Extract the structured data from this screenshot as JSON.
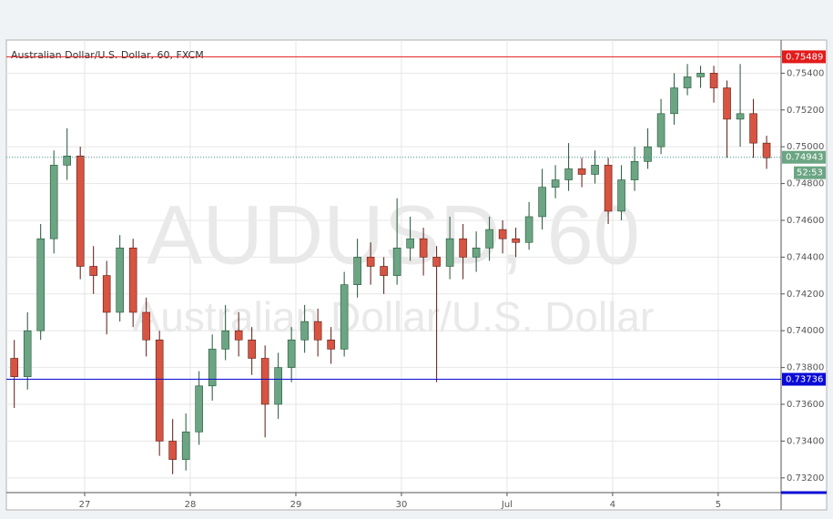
{
  "chart_data": {
    "type": "candlestick",
    "title": "Australian Dollar/U.S. Dollar, 60, FXCM",
    "watermark": [
      "AUDUSD, 60",
      "Australian Dollar/U.S. Dollar"
    ],
    "x": [
      -16,
      -13,
      -10,
      -7,
      -4,
      -1,
      2,
      5,
      8,
      11,
      14,
      17,
      20,
      23,
      26,
      29,
      32,
      35,
      38,
      41,
      44,
      47,
      50,
      53,
      56,
      59,
      62,
      65,
      68,
      71,
      74,
      77,
      80,
      83,
      86,
      89,
      92,
      95,
      98,
      101,
      104,
      107,
      110,
      113,
      116,
      119,
      122,
      125,
      128,
      131,
      134,
      137,
      140,
      143,
      146,
      149,
      152,
      155
    ],
    "open": [
      0.7385,
      0.7375,
      0.74,
      0.745,
      0.749,
      0.7495,
      0.7435,
      0.743,
      0.741,
      0.7445,
      0.741,
      0.7395,
      0.734,
      0.733,
      0.7345,
      0.737,
      0.739,
      0.74,
      0.7395,
      0.7385,
      0.736,
      0.738,
      0.7395,
      0.7405,
      0.7395,
      0.739,
      0.7425,
      0.744,
      0.7435,
      0.743,
      0.7445,
      0.745,
      0.744,
      0.7435,
      0.745,
      0.744,
      0.7445,
      0.7455,
      0.745,
      0.7448,
      0.7462,
      0.7478,
      0.7482,
      0.7488,
      0.7485,
      0.749,
      0.7465,
      0.7482,
      0.7492,
      0.75,
      0.7518,
      0.7532,
      0.7538,
      0.754,
      0.7532,
      0.7515,
      0.7518,
      0.7502
    ],
    "high": [
      0.7395,
      0.741,
      0.7458,
      0.7498,
      0.751,
      0.75,
      0.7446,
      0.7438,
      0.7452,
      0.745,
      0.7418,
      0.74,
      0.7352,
      0.7355,
      0.7378,
      0.7398,
      0.7414,
      0.741,
      0.7402,
      0.7392,
      0.7388,
      0.7402,
      0.7414,
      0.7412,
      0.7402,
      0.7432,
      0.745,
      0.7448,
      0.744,
      0.7472,
      0.7462,
      0.7456,
      0.7446,
      0.7462,
      0.7458,
      0.7454,
      0.7462,
      0.746,
      0.7456,
      0.747,
      0.7488,
      0.749,
      0.7502,
      0.7494,
      0.7498,
      0.7494,
      0.749,
      0.75,
      0.751,
      0.7526,
      0.754,
      0.7545,
      0.7544,
      0.7544,
      0.7536,
      0.7545,
      0.7526,
      0.7506
    ],
    "low": [
      0.7358,
      0.7368,
      0.7395,
      0.7442,
      0.7482,
      0.7428,
      0.742,
      0.7398,
      0.7405,
      0.7402,
      0.7386,
      0.7332,
      0.7322,
      0.7324,
      0.7338,
      0.7362,
      0.7384,
      0.7386,
      0.7376,
      0.7342,
      0.7352,
      0.7372,
      0.7388,
      0.7386,
      0.7382,
      0.7386,
      0.7418,
      0.7425,
      0.742,
      0.7425,
      0.7438,
      0.743,
      0.7372,
      0.7428,
      0.7428,
      0.7432,
      0.7438,
      0.7442,
      0.744,
      0.7444,
      0.7455,
      0.7472,
      0.7476,
      0.7478,
      0.748,
      0.7458,
      0.746,
      0.7476,
      0.7488,
      0.7496,
      0.7512,
      0.7528,
      0.7532,
      0.7524,
      0.7494,
      0.75,
      0.7494,
      0.7488
    ],
    "close": [
      0.7375,
      0.74,
      0.745,
      0.749,
      0.7495,
      0.7435,
      0.743,
      0.741,
      0.7445,
      0.741,
      0.7395,
      0.734,
      0.733,
      0.7345,
      0.737,
      0.739,
      0.74,
      0.7395,
      0.7385,
      0.736,
      0.738,
      0.7395,
      0.7405,
      0.7395,
      0.739,
      0.7425,
      0.744,
      0.7435,
      0.743,
      0.7445,
      0.745,
      0.744,
      0.7435,
      0.745,
      0.744,
      0.7445,
      0.7455,
      0.745,
      0.7448,
      0.7462,
      0.7478,
      0.7482,
      0.7488,
      0.7485,
      0.749,
      0.7465,
      0.7482,
      0.7492,
      0.75,
      0.7518,
      0.7532,
      0.7538,
      0.754,
      0.7532,
      0.7515,
      0.7518,
      0.7502,
      0.7494
    ],
    "up_color": "#6ba583",
    "down_color": "#d75442",
    "xlim": [
      -17.8,
      158.3
    ],
    "xticks": [
      {
        "value": 0,
        "label": "27"
      },
      {
        "value": 24,
        "label": "28"
      },
      {
        "value": 48,
        "label": "29"
      },
      {
        "value": 72,
        "label": "30"
      },
      {
        "value": 96,
        "label": "Jul"
      },
      {
        "value": 120,
        "label": "4"
      },
      {
        "value": 144,
        "label": "5"
      }
    ],
    "ylim": [
      0.7312,
      0.7558
    ],
    "yticks": [
      {
        "value": 0.732,
        "label": "0.73200"
      },
      {
        "value": 0.734,
        "label": "0.73400"
      },
      {
        "value": 0.736,
        "label": "0.73600"
      },
      {
        "value": 0.738,
        "label": "0.73800"
      },
      {
        "value": 0.74,
        "label": "0.74000"
      },
      {
        "value": 0.742,
        "label": "0.74200"
      },
      {
        "value": 0.744,
        "label": "0.74400"
      },
      {
        "value": 0.746,
        "label": "0.74600"
      },
      {
        "value": 0.748,
        "label": "0.74800"
      },
      {
        "value": 0.75,
        "label": "0.75000"
      },
      {
        "value": 0.752,
        "label": "0.75200"
      },
      {
        "value": 0.754,
        "label": "0.75400"
      }
    ],
    "grid": true,
    "levels": [
      {
        "value": 0.75489,
        "color": "#e31b1b"
      },
      {
        "value": 0.73736,
        "color": "#0b0bd6"
      }
    ],
    "last_price": {
      "value": 0.74943,
      "color": "#6ba583",
      "countdown": "52:53"
    }
  }
}
